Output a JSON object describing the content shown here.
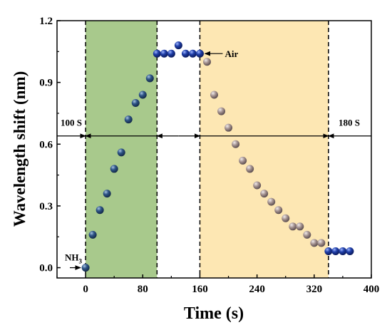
{
  "chart_data": {
    "type": "scatter",
    "xlabel": "Time (s)",
    "ylabel": "Wavelength shift (nm)",
    "xlim": [
      -40,
      400
    ],
    "ylim": [
      -0.05,
      1.2
    ],
    "xticks": [
      0,
      80,
      160,
      240,
      320,
      400
    ],
    "xtick_labels": [
      "0",
      "80",
      "160",
      "240",
      "320",
      "400"
    ],
    "yticks": [
      0.0,
      0.3,
      0.6,
      0.9,
      1.2
    ],
    "ytick_labels": [
      "0.0",
      "0.3",
      "0.6",
      "0.9",
      "1.2"
    ],
    "grid": false,
    "shaded_regions": [
      {
        "x_start": 0,
        "x_end": 100,
        "color": "#a8c98c"
      },
      {
        "x_start": 160,
        "x_end": 340,
        "color": "#fde7b3"
      }
    ],
    "vertical_lines_x": [
      0,
      100,
      160,
      340
    ],
    "series": [
      {
        "color": "#1f3ea8",
        "x": [
          0,
          10,
          20,
          30,
          40,
          50,
          60,
          70,
          80,
          90,
          100,
          110,
          120,
          130,
          140,
          150,
          160
        ],
        "y": [
          0.0,
          0.16,
          0.28,
          0.36,
          0.48,
          0.56,
          0.72,
          0.8,
          0.84,
          0.92,
          1.04,
          1.04,
          1.04,
          1.08,
          1.04,
          1.04,
          1.04
        ]
      },
      {
        "color": "#9a8a8a",
        "x": [
          170,
          180,
          190,
          200,
          210,
          220,
          230,
          240,
          250,
          260,
          270,
          280,
          290,
          300,
          310,
          320,
          330
        ],
        "y": [
          1.0,
          0.84,
          0.76,
          0.68,
          0.6,
          0.52,
          0.48,
          0.4,
          0.36,
          0.32,
          0.28,
          0.24,
          0.2,
          0.2,
          0.16,
          0.12,
          0.12
        ]
      },
      {
        "color": "#1f3ea8",
        "x": [
          340,
          350,
          360,
          370
        ],
        "y": [
          0.08,
          0.08,
          0.08,
          0.08
        ]
      }
    ],
    "annotations": [
      {
        "text": "100 S",
        "x": -30,
        "y": 0.65
      },
      {
        "text": "180 S",
        "x": 358,
        "y": 0.65
      },
      {
        "text": "Air",
        "x": 185,
        "y": 1.04
      },
      {
        "text": "NH3",
        "x": -25,
        "y": 0.03
      }
    ],
    "horizontal_arrows_y": 0.64
  }
}
